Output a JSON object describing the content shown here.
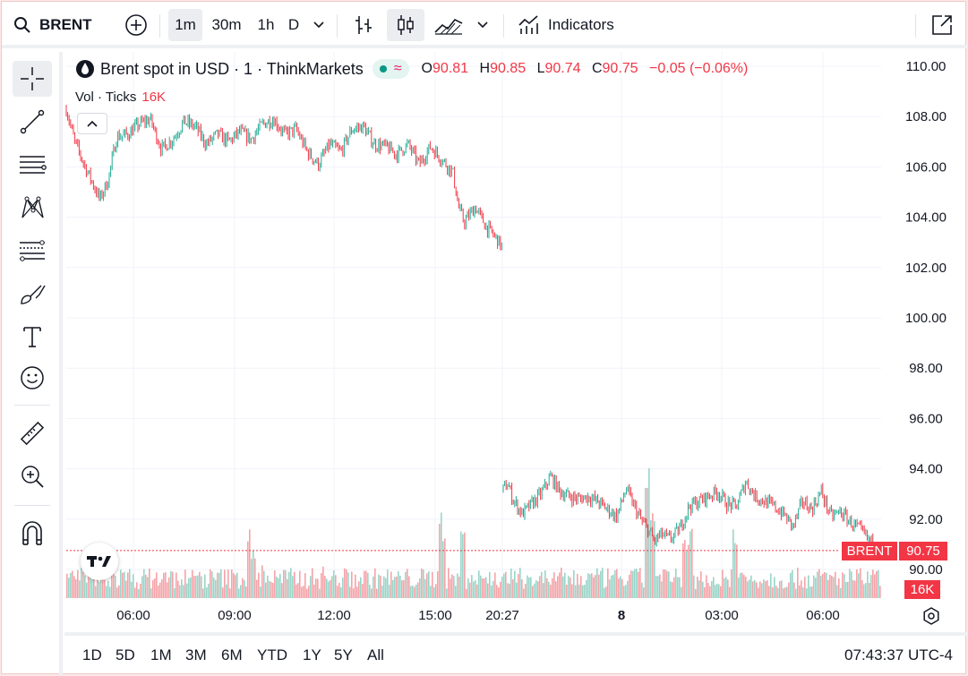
{
  "toolbar": {
    "symbol": "BRENT",
    "intervals": [
      "1m",
      "30m",
      "1h",
      "D"
    ],
    "indicators_label": "Indicators"
  },
  "legend": {
    "title": "Brent spot in USD · 1 · ThinkMarkets",
    "o_label": "O",
    "o_value": "90.81",
    "h_label": "H",
    "h_value": "90.85",
    "l_label": "L",
    "l_value": "90.74",
    "c_label": "C",
    "c_value": "90.75",
    "change": "−0.05 (−0.06%)",
    "pill_icon": "≈",
    "volume_label": "Vol · Ticks",
    "volume_value": "16K"
  },
  "price_badge": {
    "symbol": "BRENT",
    "price": "90.75"
  },
  "volume_badge": "16K",
  "bottom": {
    "ranges": [
      "1D",
      "5D",
      "1M",
      "3M",
      "6M",
      "YTD",
      "1Y",
      "5Y",
      "All"
    ],
    "clock": "07:43:37 UTC-4"
  },
  "colors": {
    "up": "#22ab94",
    "down": "#f23645",
    "grid": "#f0f3fa",
    "volume_up": "#9ad4c8",
    "volume_down": "#f5a3a8"
  },
  "chart_data": {
    "type": "line",
    "title": "Brent spot in USD · 1 · ThinkMarkets",
    "y_ticks": [
      "110.00",
      "108.00",
      "106.00",
      "104.00",
      "102.00",
      "100.00",
      "98.00",
      "96.00",
      "94.00",
      "92.00",
      "90.00"
    ],
    "ylim": [
      89.5,
      110.4
    ],
    "x_ticks": [
      "06:00",
      "09:00",
      "12:00",
      "15:00",
      "20:27",
      "8",
      "03:00",
      "06:00"
    ],
    "grid": true,
    "series": [
      {
        "name": "BRENT",
        "segment": "session 1",
        "x_minutes": [
          0,
          15,
          30,
          50,
          60,
          75,
          90,
          110,
          130,
          150,
          170,
          190,
          210,
          230,
          250,
          270,
          290,
          310,
          330,
          350,
          370,
          390,
          410,
          430,
          450,
          470,
          490,
          510,
          530,
          550,
          570,
          590,
          610,
          630,
          650,
          670,
          690,
          700,
          710,
          730,
          750,
          770,
          780
        ],
        "close": [
          108.3,
          107.0,
          106.2,
          105.2,
          104.7,
          105.5,
          107.2,
          107.3,
          107.7,
          107.9,
          106.7,
          107.1,
          107.8,
          107.6,
          106.9,
          107.3,
          107.0,
          107.4,
          107.1,
          107.7,
          107.9,
          107.3,
          107.5,
          106.6,
          106.1,
          106.9,
          106.6,
          107.5,
          107.6,
          106.9,
          106.8,
          106.5,
          106.9,
          106.1,
          106.8,
          106.3,
          105.8,
          104.4,
          103.8,
          104.4,
          103.6,
          103.1,
          102.7
        ]
      },
      {
        "name": "BRENT",
        "segment": "session 2",
        "x_minutes": [
          0,
          15,
          30,
          60,
          90,
          120,
          150,
          180,
          210,
          240,
          270,
          300,
          330,
          360,
          390,
          420,
          440,
          460,
          480,
          500,
          530,
          560,
          590,
          620,
          650,
          680,
          710,
          740,
          770,
          800,
          830,
          860,
          890,
          920,
          950,
          980,
          1010,
          1040,
          1070,
          1100,
          1130,
          1160,
          1200
        ],
        "close": [
          93.2,
          93.4,
          92.8,
          92.2,
          92.6,
          93.0,
          93.7,
          93.1,
          92.9,
          92.8,
          92.9,
          92.7,
          92.4,
          92.1,
          93.2,
          92.4,
          91.9,
          91.6,
          91.1,
          91.4,
          91.2,
          91.6,
          92.5,
          92.7,
          92.9,
          93.1,
          92.6,
          92.5,
          93.5,
          92.9,
          92.7,
          92.5,
          92.2,
          91.7,
          92.7,
          92.4,
          93.1,
          92.1,
          92.3,
          91.9,
          91.6,
          91.2,
          90.75
        ]
      }
    ],
    "last_price": 90.75
  }
}
